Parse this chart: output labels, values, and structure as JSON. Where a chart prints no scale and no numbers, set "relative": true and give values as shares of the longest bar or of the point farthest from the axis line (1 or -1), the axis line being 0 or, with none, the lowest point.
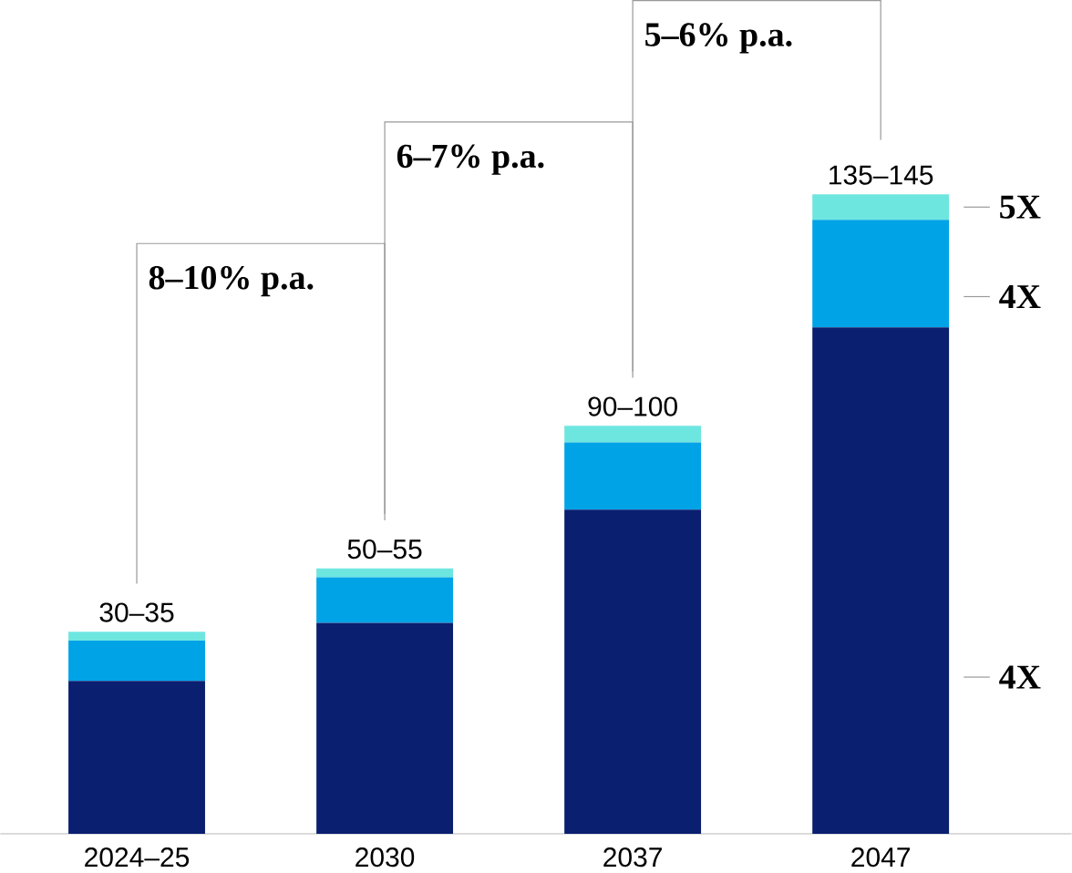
{
  "chart_data": {
    "type": "bar",
    "stacked": true,
    "relative": true,
    "categories": [
      "2024–25",
      "2030",
      "2037",
      "2047"
    ],
    "series": [
      {
        "color": "#0a1f70",
        "values": [
          0.239,
          0.33,
          0.507,
          0.792
        ]
      },
      {
        "color": "#00a3e6",
        "values": [
          0.063,
          0.071,
          0.105,
          0.168
        ]
      },
      {
        "color": "#6ee6e0",
        "values": [
          0.014,
          0.014,
          0.026,
          0.04
        ]
      }
    ],
    "totals": [
      "30–35",
      "50–55",
      "90–100",
      "135–145"
    ],
    "annotations": [
      "8–10% p.a.",
      "6–7% p.a.",
      "5–6% p.a.",
      "5X",
      "4X",
      "4X"
    ]
  }
}
